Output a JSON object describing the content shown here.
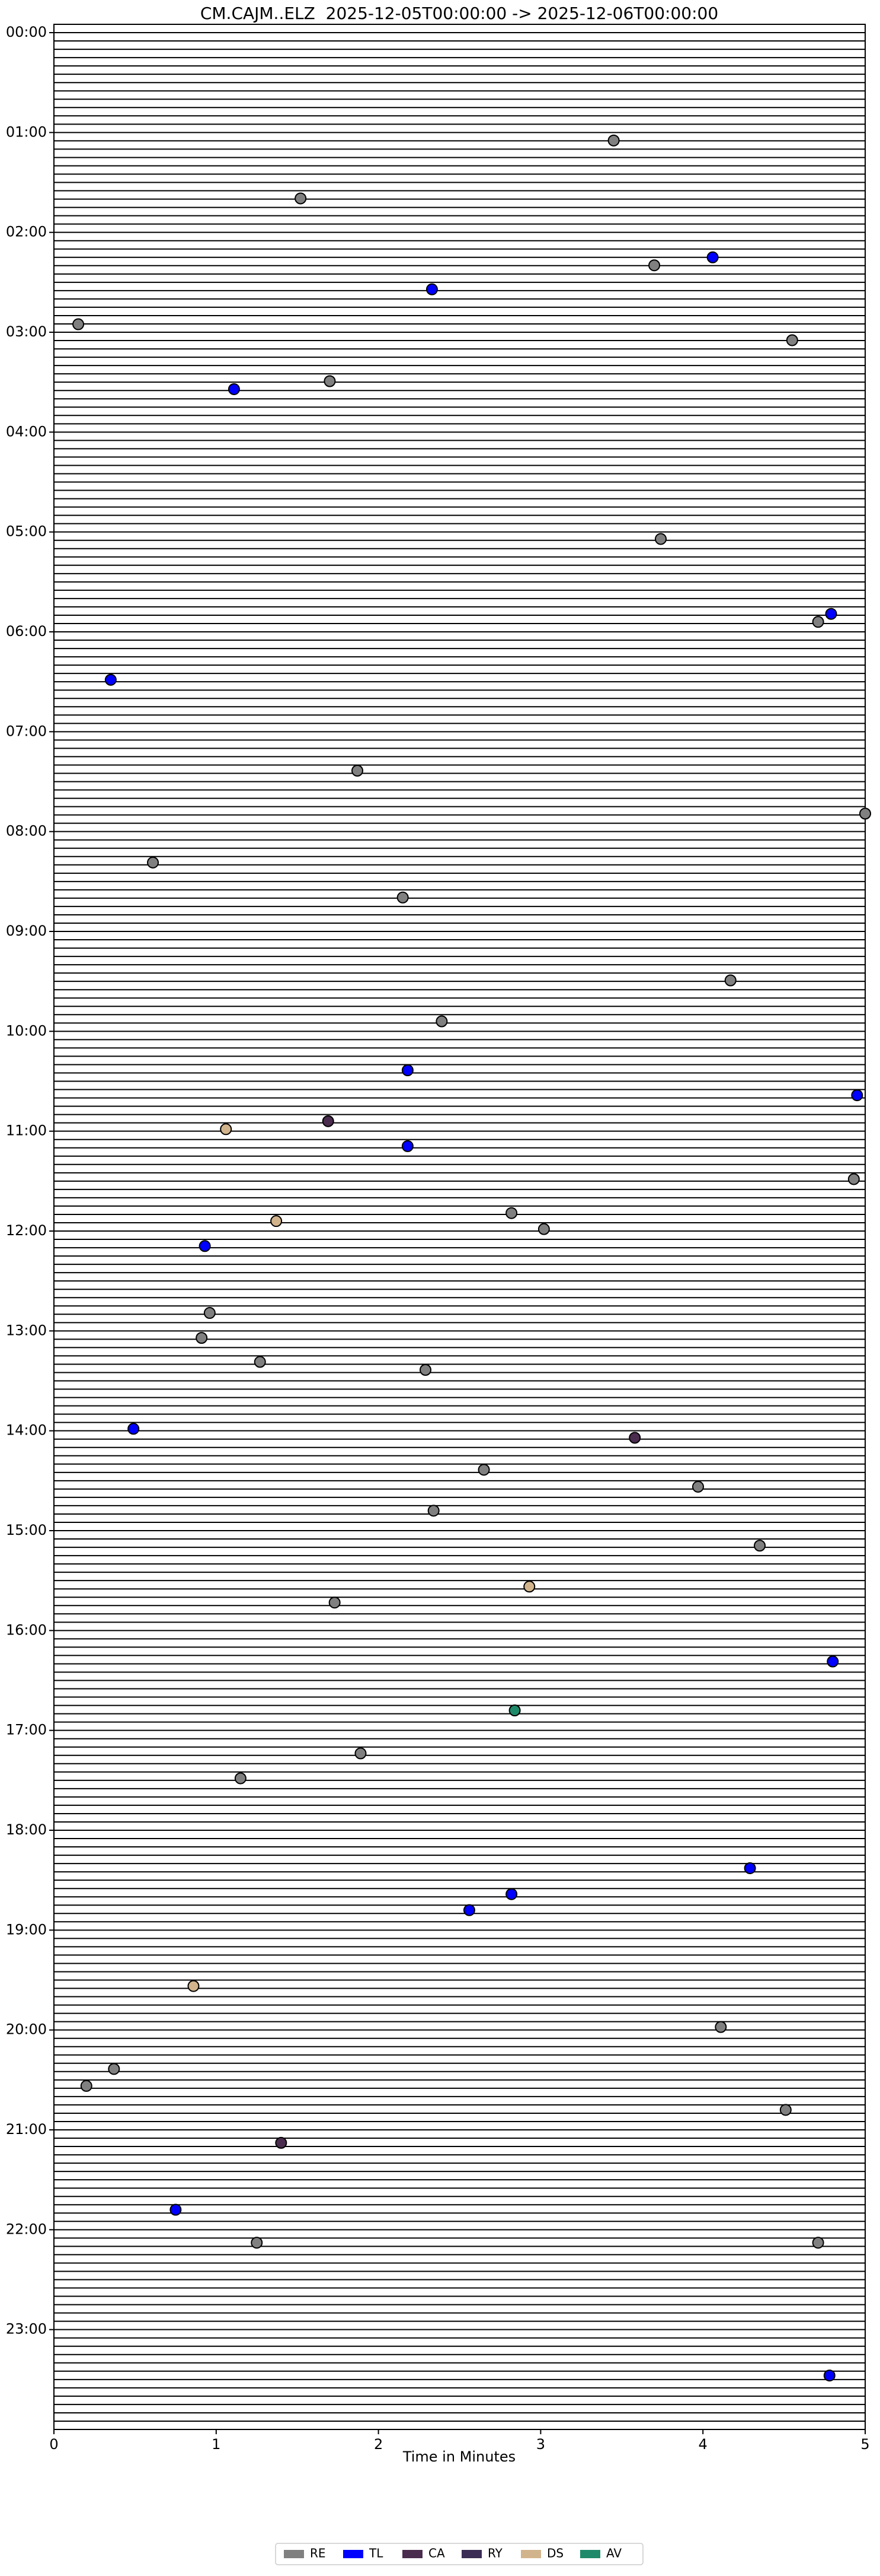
{
  "chart_data": {
    "type": "scatter",
    "title": "CM.CAJM..ELZ  2025-12-05T00:00:00 -> 2025-12-06T00:00:00",
    "x_label": "Time in Minutes",
    "xlim": [
      0,
      5
    ],
    "xticks": [
      0,
      1,
      2,
      3,
      4,
      5
    ],
    "ylim": [
      -0.0833,
      24
    ],
    "y_inverted": true,
    "yticks": [
      {
        "value": 0,
        "label": "00:00"
      },
      {
        "value": 1,
        "label": "01:00"
      },
      {
        "value": 2,
        "label": "02:00"
      },
      {
        "value": 3,
        "label": "03:00"
      },
      {
        "value": 4,
        "label": "04:00"
      },
      {
        "value": 5,
        "label": "05:00"
      },
      {
        "value": 6,
        "label": "06:00"
      },
      {
        "value": 7,
        "label": "07:00"
      },
      {
        "value": 8,
        "label": "08:00"
      },
      {
        "value": 9,
        "label": "09:00"
      },
      {
        "value": 10,
        "label": "10:00"
      },
      {
        "value": 11,
        "label": "11:00"
      },
      {
        "value": 12,
        "label": "12:00"
      },
      {
        "value": 13,
        "label": "13:00"
      },
      {
        "value": 14,
        "label": "14:00"
      },
      {
        "value": 15,
        "label": "15:00"
      },
      {
        "value": 16,
        "label": "16:00"
      },
      {
        "value": 17,
        "label": "17:00"
      },
      {
        "value": 18,
        "label": "18:00"
      },
      {
        "value": 19,
        "label": "19:00"
      },
      {
        "value": 20,
        "label": "20:00"
      },
      {
        "value": 21,
        "label": "21:00"
      },
      {
        "value": 22,
        "label": "22:00"
      },
      {
        "value": 23,
        "label": "23:00"
      }
    ],
    "legend": "bottom",
    "series": [
      {
        "name": "RE",
        "color": "#808080",
        "x": [
          3.45,
          1.52,
          3.7,
          0.15,
          4.55,
          1.7,
          3.74,
          4.71,
          1.87,
          5.0,
          0.61,
          2.15,
          4.17,
          2.39,
          4.93,
          2.82,
          3.02,
          0.96,
          0.91,
          1.27,
          2.29,
          2.65,
          3.97,
          2.34,
          4.35,
          1.73,
          1.89,
          1.15,
          4.11,
          0.37,
          0.2,
          4.51,
          1.25,
          4.71
        ],
        "values": [
          1.08,
          1.66,
          2.33,
          2.92,
          3.08,
          3.49,
          5.07,
          5.9,
          7.39,
          7.82,
          8.31,
          8.66,
          9.49,
          9.9,
          11.48,
          11.82,
          11.98,
          12.82,
          13.07,
          13.31,
          13.39,
          14.39,
          14.56,
          14.8,
          15.15,
          15.72,
          17.23,
          17.48,
          19.97,
          20.39,
          20.56,
          20.8,
          22.13,
          22.13
        ]
      },
      {
        "name": "TL",
        "color": "#0000ff",
        "x": [
          4.06,
          2.33,
          1.11,
          4.79,
          0.35,
          2.18,
          4.95,
          2.18,
          0.93,
          0.49,
          4.8,
          4.29,
          2.82,
          2.56,
          0.75,
          4.78
        ],
        "values": [
          2.25,
          2.57,
          3.57,
          5.82,
          6.48,
          10.39,
          10.64,
          11.15,
          12.15,
          13.98,
          16.31,
          18.38,
          18.64,
          18.8,
          21.8,
          23.46
        ]
      },
      {
        "name": "CA",
        "color": "#4a2c4e",
        "x": [
          1.69,
          3.58,
          1.4
        ],
        "values": [
          10.9,
          14.07,
          21.13
        ]
      },
      {
        "name": "RY",
        "color": "#3b2c55",
        "x": [],
        "values": []
      },
      {
        "name": "DS",
        "color": "#d2b48c",
        "x": [
          1.06,
          1.37,
          2.93,
          0.86
        ],
        "values": [
          10.98,
          11.9,
          15.56,
          19.56
        ]
      },
      {
        "name": "AV",
        "color": "#1f8a6a",
        "x": [
          2.84
        ],
        "values": [
          16.8
        ]
      }
    ]
  }
}
